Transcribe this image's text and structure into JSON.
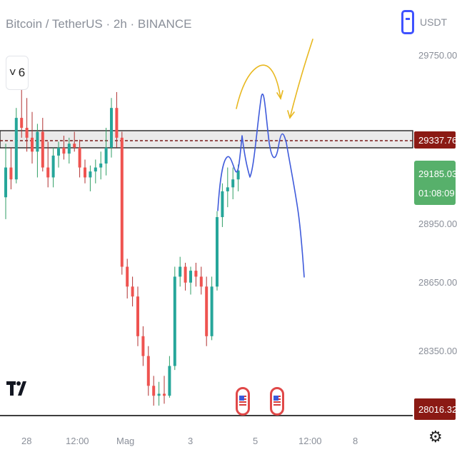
{
  "header": {
    "symbol_title": "Bitcoin / TetherUS · 2h · BINANCE",
    "currency_label": "USDT",
    "indicator_count": "6",
    "chevron_glyph": "˅"
  },
  "colors": {
    "bull": "#26a69a",
    "bear": "#ef5350",
    "bull_wick": "#2f9e64",
    "bear_wick": "#b03030",
    "drawing_blue": "#3f5bdb",
    "drawing_yellow": "#e8b820",
    "price_tag_green": "#57b06b",
    "zone_tag_red": "#8b1a14"
  },
  "chart_data": {
    "type": "candlestick",
    "symbol": "Bitcoin / TetherUS",
    "interval": "2h",
    "exchange": "BINANCE",
    "ylim": [
      27950,
      29900
    ],
    "y_ticks": [
      "29750.00",
      "28950.00",
      "28650.00",
      "28350.00"
    ],
    "x_ticks": [
      {
        "label": "28",
        "i": 4
      },
      {
        "label": "12:00",
        "i": 14
      },
      {
        "label": "Mag",
        "i": 23
      },
      {
        "label": "3",
        "i": 38
      },
      {
        "label": "5",
        "i": 52
      },
      {
        "label": "12:00",
        "i": 61
      },
      {
        "label": "8",
        "i": 72
      }
    ],
    "candles": [
      [
        29050,
        29320,
        28940,
        29200
      ],
      [
        29200,
        29300,
        29090,
        29140
      ],
      [
        29140,
        29500,
        29120,
        29450
      ],
      [
        29450,
        29650,
        29350,
        29400
      ],
      [
        29400,
        29550,
        29280,
        29350
      ],
      [
        29350,
        29480,
        29220,
        29280
      ],
      [
        29280,
        29420,
        29150,
        29380
      ],
      [
        29380,
        29450,
        29180,
        29200
      ],
      [
        29200,
        29330,
        29100,
        29150
      ],
      [
        29150,
        29300,
        29100,
        29260
      ],
      [
        29260,
        29330,
        29200,
        29300
      ],
      [
        29300,
        29360,
        29240,
        29270
      ],
      [
        29270,
        29350,
        29220,
        29320
      ],
      [
        29320,
        29380,
        29280,
        29300
      ],
      [
        29300,
        29340,
        29150,
        29200
      ],
      [
        29200,
        29240,
        29120,
        29150
      ],
      [
        29150,
        29210,
        29080,
        29180
      ],
      [
        29180,
        29240,
        29120,
        29200
      ],
      [
        29200,
        29280,
        29140,
        29220
      ],
      [
        29220,
        29400,
        29160,
        29300
      ],
      [
        29300,
        29550,
        29250,
        29500
      ],
      [
        29500,
        29580,
        29300,
        29350
      ],
      [
        29350,
        29380,
        28660,
        28700
      ],
      [
        28700,
        28740,
        28540,
        28600
      ],
      [
        28600,
        28650,
        28500,
        28550
      ],
      [
        28550,
        28600,
        28300,
        28350
      ],
      [
        28350,
        28400,
        28200,
        28250
      ],
      [
        28250,
        28300,
        28050,
        28100
      ],
      [
        28100,
        28150,
        28000,
        28050
      ],
      [
        28050,
        28120,
        28000,
        28060
      ],
      [
        28060,
        28150,
        28010,
        28050
      ],
      [
        28050,
        28250,
        28040,
        28200
      ],
      [
        28200,
        28700,
        28180,
        28650
      ],
      [
        28650,
        28750,
        28600,
        28700
      ],
      [
        28700,
        28720,
        28580,
        28620
      ],
      [
        28620,
        28700,
        28560,
        28680
      ],
      [
        28680,
        28720,
        28600,
        28650
      ],
      [
        28650,
        28700,
        28560,
        28600
      ],
      [
        28600,
        28650,
        28300,
        28350
      ],
      [
        28350,
        28650,
        28330,
        28600
      ],
      [
        28600,
        28980,
        28580,
        28950
      ],
      [
        28950,
        29120,
        28900,
        29080
      ],
      [
        29080,
        29200,
        29000,
        29100
      ],
      [
        29100,
        29200,
        29040,
        29140
      ],
      [
        29140,
        29215,
        29080,
        29185
      ]
    ],
    "horizontal_levels": [
      {
        "price_label": "29337.76",
        "style": "dashed"
      },
      {
        "price_label": "28016.32",
        "style": "solid"
      }
    ],
    "zone": [
      29290,
      29385
    ],
    "last_price": "29185.03",
    "countdown": "01:08:09"
  }
}
